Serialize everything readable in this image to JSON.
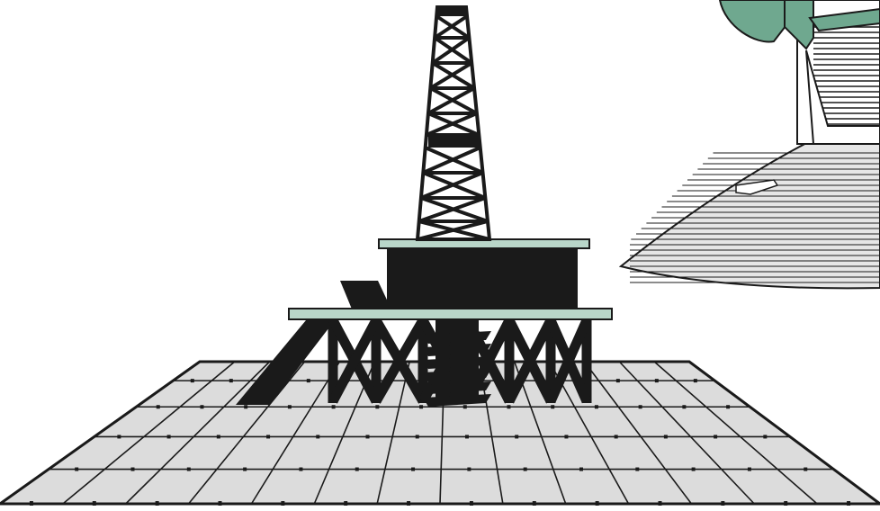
{
  "scene": {
    "kind": "clip-art illustration",
    "subjects": [
      "offshore-oil-platform",
      "drilling-derrick",
      "survey-grid",
      "ship-bow"
    ]
  },
  "colors": {
    "background": "#ffffff",
    "ink": "#1a1a1a",
    "deck": "#b9d6c9",
    "grid_fill": "#dcdcdc",
    "hull_accent": "#6fa88f",
    "hull_deck": "#e6e6e6"
  }
}
